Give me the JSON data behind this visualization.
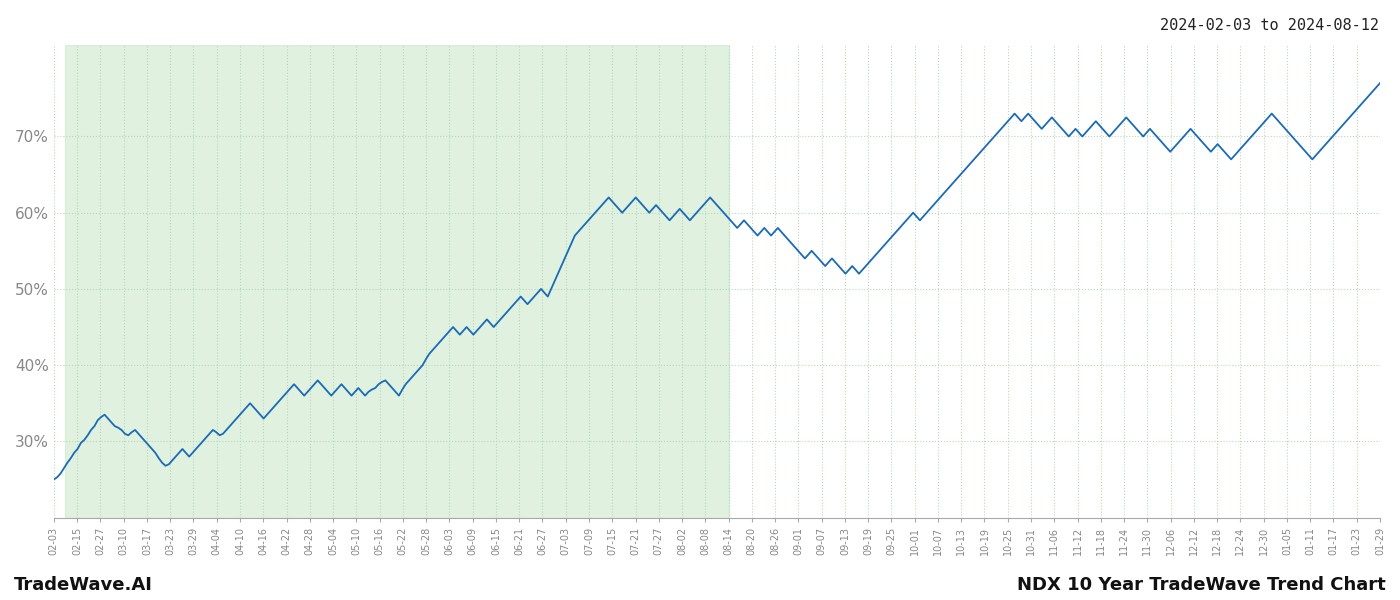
{
  "title_top_right": "2024-02-03 to 2024-08-12",
  "bottom_left": "TradeWave.AI",
  "bottom_right": "NDX 10 Year TradeWave Trend Chart",
  "y_min": 20,
  "y_max": 82,
  "y_ticks": [
    30,
    40,
    50,
    60,
    70
  ],
  "y_tick_labels": [
    "30%",
    "40%",
    "50%",
    "60%",
    "70%"
  ],
  "line_color": "#1a6bb5",
  "line_width": 1.3,
  "shaded_color": "#c8e6c8",
  "shaded_alpha": 0.55,
  "grid_color": "#b8d8b8",
  "background_color": "#ffffff",
  "x_labels": [
    "02-03",
    "02-15",
    "02-27",
    "03-10",
    "03-17",
    "03-23",
    "03-29",
    "04-04",
    "04-10",
    "04-16",
    "04-22",
    "04-28",
    "05-04",
    "05-10",
    "05-16",
    "05-22",
    "05-28",
    "06-03",
    "06-09",
    "06-15",
    "06-21",
    "06-27",
    "07-03",
    "07-09",
    "07-15",
    "07-21",
    "07-27",
    "08-02",
    "08-08",
    "08-14",
    "08-20",
    "08-26",
    "09-01",
    "09-07",
    "09-13",
    "09-19",
    "09-25",
    "10-01",
    "10-07",
    "10-13",
    "10-19",
    "10-25",
    "10-31",
    "11-06",
    "11-12",
    "11-18",
    "11-24",
    "11-30",
    "12-06",
    "12-12",
    "12-18",
    "12-24",
    "12-30",
    "01-05",
    "01-11",
    "01-17",
    "01-23",
    "01-29"
  ],
  "shaded_end_label": "08-14",
  "shaded_start_label": "02-09",
  "y_values": [
    25.0,
    25.3,
    25.8,
    26.5,
    27.2,
    27.8,
    28.5,
    29.0,
    29.8,
    30.2,
    30.8,
    31.5,
    32.0,
    32.8,
    33.2,
    33.5,
    33.0,
    32.5,
    32.0,
    31.8,
    31.5,
    31.0,
    30.8,
    31.2,
    31.5,
    31.0,
    30.5,
    30.0,
    29.5,
    29.0,
    28.5,
    27.8,
    27.2,
    26.8,
    27.0,
    27.5,
    28.0,
    28.5,
    29.0,
    28.5,
    28.0,
    28.5,
    29.0,
    29.5,
    30.0,
    30.5,
    31.0,
    31.5,
    31.2,
    30.8,
    31.0,
    31.5,
    32.0,
    32.5,
    33.0,
    33.5,
    34.0,
    34.5,
    35.0,
    34.5,
    34.0,
    33.5,
    33.0,
    33.5,
    34.0,
    34.5,
    35.0,
    35.5,
    36.0,
    36.5,
    37.0,
    37.5,
    37.0,
    36.5,
    36.0,
    36.5,
    37.0,
    37.5,
    38.0,
    37.5,
    37.0,
    36.5,
    36.0,
    36.5,
    37.0,
    37.5,
    37.0,
    36.5,
    36.0,
    36.5,
    37.0,
    36.5,
    36.0,
    36.5,
    36.8,
    37.0,
    37.5,
    37.8,
    38.0,
    37.5,
    37.0,
    36.5,
    36.0,
    36.8,
    37.5,
    38.0,
    38.5,
    39.0,
    39.5,
    40.0,
    40.8,
    41.5,
    42.0,
    42.5,
    43.0,
    43.5,
    44.0,
    44.5,
    45.0,
    44.5,
    44.0,
    44.5,
    45.0,
    44.5,
    44.0,
    44.5,
    45.0,
    45.5,
    46.0,
    45.5,
    45.0,
    45.5,
    46.0,
    46.5,
    47.0,
    47.5,
    48.0,
    48.5,
    49.0,
    48.5,
    48.0,
    48.5,
    49.0,
    49.5,
    50.0,
    49.5,
    49.0,
    50.0,
    51.0,
    52.0,
    53.0,
    54.0,
    55.0,
    56.0,
    57.0,
    57.5,
    58.0,
    58.5,
    59.0,
    59.5,
    60.0,
    60.5,
    61.0,
    61.5,
    62.0,
    61.5,
    61.0,
    60.5,
    60.0,
    60.5,
    61.0,
    61.5,
    62.0,
    61.5,
    61.0,
    60.5,
    60.0,
    60.5,
    61.0,
    60.5,
    60.0,
    59.5,
    59.0,
    59.5,
    60.0,
    60.5,
    60.0,
    59.5,
    59.0,
    59.5,
    60.0,
    60.5,
    61.0,
    61.5,
    62.0,
    61.5,
    61.0,
    60.5,
    60.0,
    59.5,
    59.0,
    58.5,
    58.0,
    58.5,
    59.0,
    58.5,
    58.0,
    57.5,
    57.0,
    57.5,
    58.0,
    57.5,
    57.0,
    57.5,
    58.0,
    57.5,
    57.0,
    56.5,
    56.0,
    55.5,
    55.0,
    54.5,
    54.0,
    54.5,
    55.0,
    54.5,
    54.0,
    53.5,
    53.0,
    53.5,
    54.0,
    53.5,
    53.0,
    52.5,
    52.0,
    52.5,
    53.0,
    52.5,
    52.0,
    52.5,
    53.0,
    53.5,
    54.0,
    54.5,
    55.0,
    55.5,
    56.0,
    56.5,
    57.0,
    57.5,
    58.0,
    58.5,
    59.0,
    59.5,
    60.0,
    59.5,
    59.0,
    59.5,
    60.0,
    60.5,
    61.0,
    61.5,
    62.0,
    62.5,
    63.0,
    63.5,
    64.0,
    64.5,
    65.0,
    65.5,
    66.0,
    66.5,
    67.0,
    67.5,
    68.0,
    68.5,
    69.0,
    69.5,
    70.0,
    70.5,
    71.0,
    71.5,
    72.0,
    72.5,
    73.0,
    72.5,
    72.0,
    72.5,
    73.0,
    72.5,
    72.0,
    71.5,
    71.0,
    71.5,
    72.0,
    72.5,
    72.0,
    71.5,
    71.0,
    70.5,
    70.0,
    70.5,
    71.0,
    70.5,
    70.0,
    70.5,
    71.0,
    71.5,
    72.0,
    71.5,
    71.0,
    70.5,
    70.0,
    70.5,
    71.0,
    71.5,
    72.0,
    72.5,
    72.0,
    71.5,
    71.0,
    70.5,
    70.0,
    70.5,
    71.0,
    70.5,
    70.0,
    69.5,
    69.0,
    68.5,
    68.0,
    68.5,
    69.0,
    69.5,
    70.0,
    70.5,
    71.0,
    70.5,
    70.0,
    69.5,
    69.0,
    68.5,
    68.0,
    68.5,
    69.0,
    68.5,
    68.0,
    67.5,
    67.0,
    67.5,
    68.0,
    68.5,
    69.0,
    69.5,
    70.0,
    70.5,
    71.0,
    71.5,
    72.0,
    72.5,
    73.0,
    72.5,
    72.0,
    71.5,
    71.0,
    70.5,
    70.0,
    69.5,
    69.0,
    68.5,
    68.0,
    67.5,
    67.0,
    67.5,
    68.0,
    68.5,
    69.0,
    69.5,
    70.0,
    70.5,
    71.0,
    71.5,
    72.0,
    72.5,
    73.0,
    73.5,
    74.0,
    74.5,
    75.0,
    75.5,
    76.0,
    76.5,
    77.0
  ]
}
